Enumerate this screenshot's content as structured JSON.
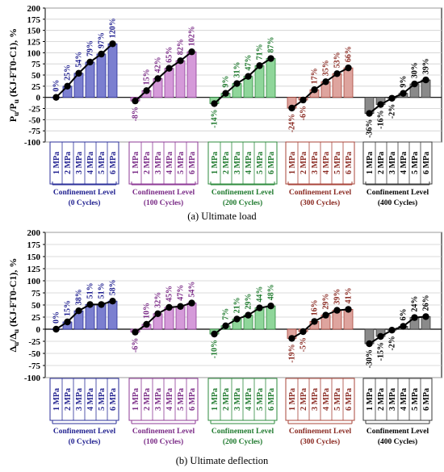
{
  "chart_data": [
    {
      "type": "bar",
      "panel": "a",
      "caption": "(a) Ultimate load",
      "ylabel_main": "P",
      "ylabel_sub": "u",
      "ylabel_mid": "/P",
      "ylabel_sub2": "u",
      "ylabel_tail": " (KJ-FT0-C1), %",
      "ylim": [
        -100,
        200
      ],
      "yticks": [
        "200",
        "175",
        "150",
        "125",
        "100",
        "75",
        "50",
        "25",
        "0",
        "-25",
        "-50",
        "-75",
        "-100"
      ],
      "categories": [
        "1 MPa",
        "2 MPa",
        "3 MPa",
        "4 MPa",
        "5 MPa",
        "6 MPa"
      ],
      "groups": [
        {
          "name": "Confinement Level",
          "cycles": "(0 Cycles)",
          "color": "#7b7fd0",
          "stroke": "#2b2f9a",
          "label_color": "#1f1f8f",
          "values": [
            0,
            25,
            54,
            79,
            97,
            120
          ],
          "labels": [
            "0%",
            "25%",
            "54%",
            "79%",
            "97%",
            "120%"
          ]
        },
        {
          "name": "Confinement Level",
          "cycles": "(100 Cycles)",
          "color": "#d59ad9",
          "stroke": "#8e3a96",
          "label_color": "#7a2a86",
          "values": [
            -8,
            15,
            42,
            65,
            82,
            102
          ],
          "labels": [
            "-8%",
            "15%",
            "42%",
            "65%",
            "82%",
            "102%"
          ]
        },
        {
          "name": "Confinement Level",
          "cycles": "(200 Cycles)",
          "color": "#8fd69a",
          "stroke": "#2e8b3e",
          "label_color": "#1f7a2e",
          "values": [
            -14,
            9,
            31,
            47,
            71,
            87
          ],
          "labels": [
            "-14%",
            "9%",
            "31%",
            "47%",
            "71%",
            "87%"
          ]
        },
        {
          "name": "Confinement Level",
          "cycles": "(300 Cycles)",
          "color": "#dea49e",
          "stroke": "#a8443a",
          "label_color": "#8a2a22",
          "values": [
            -24,
            -6,
            17,
            35,
            53,
            66
          ],
          "labels": [
            "-24%",
            "-6%",
            "17%",
            "35%",
            "53%",
            "66%"
          ]
        },
        {
          "name": "Confinement Level",
          "cycles": "(400 Cycles)",
          "color": "#8a8a8a",
          "stroke": "#3a3a3a",
          "label_color": "#000000",
          "values": [
            -36,
            -16,
            -2,
            9,
            30,
            39
          ],
          "labels": [
            "-36%",
            "-16%",
            "-2%",
            "9%",
            "30%",
            "39%"
          ]
        }
      ]
    },
    {
      "type": "bar",
      "panel": "b",
      "caption": "(b) Ultimate deflection",
      "ylabel_main": "Δ",
      "ylabel_sub": "u",
      "ylabel_mid": "/Δ",
      "ylabel_sub2": "u",
      "ylabel_tail": " (KJ-FT0-C1), %",
      "ylim": [
        -100,
        200
      ],
      "yticks": [
        "200",
        "175",
        "150",
        "125",
        "100",
        "75",
        "50",
        "25",
        "0",
        "-25",
        "-50",
        "-75",
        "-100"
      ],
      "categories": [
        "1 MPa",
        "2 MPa",
        "3 MPa",
        "4 MPa",
        "5 MPa",
        "6 MPa"
      ],
      "groups": [
        {
          "name": "Confinement Level",
          "cycles": "(0 Cycles)",
          "color": "#7b7fd0",
          "stroke": "#2b2f9a",
          "label_color": "#1f1f8f",
          "values": [
            0,
            15,
            38,
            51,
            51,
            58
          ],
          "labels": [
            "0%",
            "15%",
            "38%",
            "51%",
            "51%",
            "58%"
          ]
        },
        {
          "name": "Confinement Level",
          "cycles": "(100 Cycles)",
          "color": "#d59ad9",
          "stroke": "#8e3a96",
          "label_color": "#7a2a86",
          "values": [
            -6,
            10,
            32,
            45,
            47,
            54
          ],
          "labels": [
            "-6%",
            "10%",
            "32%",
            "45%",
            "47%",
            "54%"
          ]
        },
        {
          "name": "Confinement Level",
          "cycles": "(200 Cycles)",
          "color": "#8fd69a",
          "stroke": "#2e8b3e",
          "label_color": "#1f7a2e",
          "values": [
            -10,
            7,
            21,
            29,
            44,
            48
          ],
          "labels": [
            "-10%",
            "7%",
            "21%",
            "29%",
            "44%",
            "48%"
          ]
        },
        {
          "name": "Confinement Level",
          "cycles": "(300 Cycles)",
          "color": "#dea49e",
          "stroke": "#a8443a",
          "label_color": "#8a2a22",
          "values": [
            -19,
            -5,
            16,
            29,
            39,
            41
          ],
          "labels": [
            "-19%",
            "-5%",
            "16%",
            "29%",
            "39%",
            "41%"
          ]
        },
        {
          "name": "Confinement Level",
          "cycles": "(400 Cycles)",
          "color": "#8a8a8a",
          "stroke": "#3a3a3a",
          "label_color": "#000000",
          "values": [
            -30,
            -15,
            -2,
            6,
            24,
            26
          ],
          "labels": [
            "-30%",
            "-15%",
            "-2%",
            "6%",
            "24%",
            "26%"
          ]
        }
      ]
    }
  ]
}
